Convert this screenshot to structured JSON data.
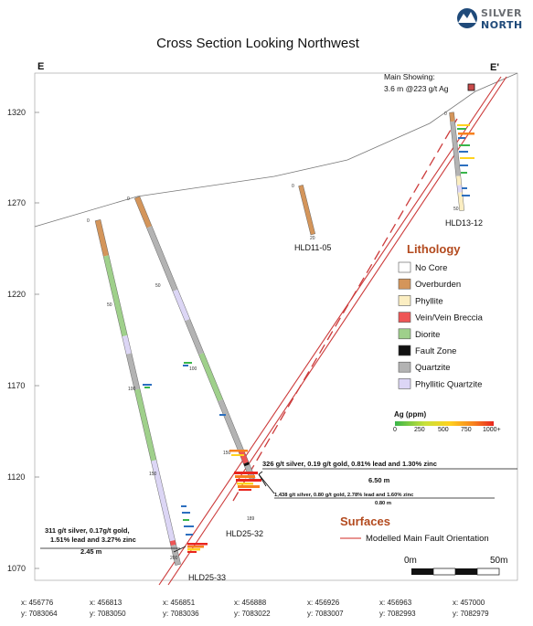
{
  "title": "Cross Section Looking Northwest",
  "logo": {
    "line1": "SILVER",
    "line2": "NORTH"
  },
  "section_ends": {
    "left": "E",
    "right": "E'"
  },
  "elevation_ticks": [
    "1320",
    "1270",
    "1220",
    "1170",
    "1120",
    "1070"
  ],
  "coordinates": [
    {
      "x": "x: 456776",
      "y": "y: 7083064"
    },
    {
      "x": "x: 456813",
      "y": "y: 7083050"
    },
    {
      "x": "x: 456851",
      "y": "y: 7083036"
    },
    {
      "x": "x: 456888",
      "y": "y: 7083022"
    },
    {
      "x": "x: 456926",
      "y": "y: 7083007"
    },
    {
      "x": "x: 456963",
      "y": "y: 7082993"
    },
    {
      "x": "x: 457000",
      "y": "y: 7082979"
    }
  ],
  "holes": {
    "hld2533": "HLD25-33",
    "hld2532": "HLD25-32",
    "hld1105": "HLD11-05",
    "hld1312": "HLD13-12"
  },
  "depth_labels": {
    "h33": [
      "0",
      "50",
      "100",
      "150",
      "200"
    ],
    "h32": [
      "0",
      "50",
      "100",
      "150",
      "189"
    ],
    "h05": [
      "0",
      "20"
    ],
    "h12": [
      "0",
      "50"
    ]
  },
  "main_showing": {
    "line1": "Main Showing:",
    "line2": "3.6 m @223 g/t Ag"
  },
  "annotations": {
    "hld2532_a": "326 g/t silver, 0.19 g/t gold, 0.81% lead and 1.30% zinc",
    "hld2532_a_len": "6.50 m",
    "hld2532_b": "1,438 g/t silver, 0.80 g/t gold, 2.78% lead and 1.60% zinc",
    "hld2532_b_len": "0.80 m",
    "hld2533_l1": "311 g/t silver, 0.17g/t gold,",
    "hld2533_l2": "1.51% lead and 3.27% zinc",
    "hld2533_l3": "2.45 m"
  },
  "lithology": {
    "title": "Lithology",
    "items": [
      {
        "label": "No Core",
        "color": "#ffffff"
      },
      {
        "label": "Overburden",
        "color": "#d4955a"
      },
      {
        "label": "Phyllite",
        "color": "#fbeec2"
      },
      {
        "label": "Vein/Vein Breccia",
        "color": "#ee5555"
      },
      {
        "label": "Diorite",
        "color": "#9fd08b"
      },
      {
        "label": "Fault Zone",
        "color": "#111111"
      },
      {
        "label": "Quartzite",
        "color": "#b3b3b3"
      },
      {
        "label": "Phyllitic Quartzite",
        "color": "#dcd6f5"
      }
    ]
  },
  "ag_scale": {
    "title": "Ag (ppm)",
    "ticks": [
      "0",
      "250",
      "500",
      "750",
      "1000+"
    ]
  },
  "surfaces": {
    "title": "Surfaces",
    "item": "Modelled Main Fault Orientation",
    "color": "#d9534f"
  },
  "scalebar": {
    "left": "0m",
    "right": "50m"
  }
}
